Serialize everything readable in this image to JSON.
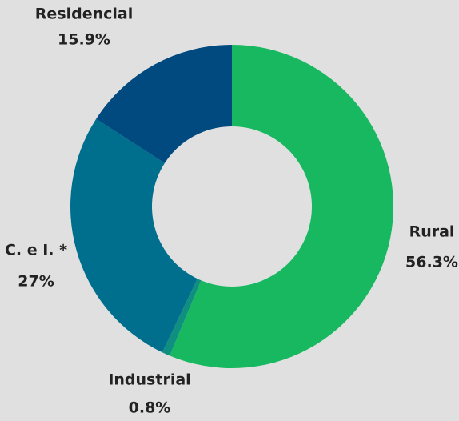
{
  "chart_data": {
    "type": "donut",
    "categories": [
      "Rural",
      "Industrial",
      "C. e I. *",
      "Residencial"
    ],
    "values": [
      56.3,
      0.8,
      27,
      15.9
    ],
    "value_labels": [
      "56.3%",
      "0.8%",
      "27%",
      "15.9%"
    ],
    "colors": [
      "#17b860",
      "#0e8f80",
      "#006f8e",
      "#004a80"
    ]
  }
}
